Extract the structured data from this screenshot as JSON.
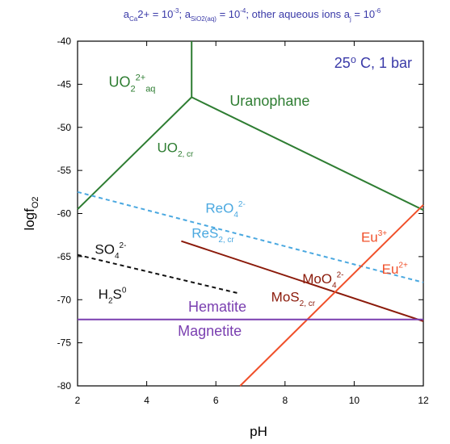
{
  "header": {
    "parts": [
      {
        "t": "a",
        "c": "#3a3aa8"
      },
      {
        "t": "Ca",
        "c": "#3a3aa8",
        "sub": true
      },
      {
        "t": "2+",
        "c": "#3a3aa8"
      },
      {
        "t": " = 10",
        "c": "#3a3aa8"
      },
      {
        "t": "-3",
        "c": "#3a3aa8",
        "sup": true
      },
      {
        "t": "; a",
        "c": "#3a3aa8"
      },
      {
        "t": "SiO2(aq)",
        "c": "#3a3aa8",
        "sub": true
      },
      {
        "t": " = 10",
        "c": "#3a3aa8"
      },
      {
        "t": "-4",
        "c": "#3a3aa8",
        "sup": true
      },
      {
        "t": "; other aqueous ions a",
        "c": "#3a3aa8"
      },
      {
        "t": "j",
        "c": "#3a3aa8",
        "sub": true
      },
      {
        "t": " = 10",
        "c": "#3a3aa8"
      },
      {
        "t": "-6",
        "c": "#3a3aa8",
        "sup": true
      }
    ]
  },
  "conditions": "25⁰ C, 1 bar",
  "axes": {
    "xlabel": "pH",
    "ylabel": "logf",
    "ylabel_sub": "O2",
    "xlim": [
      2,
      12
    ],
    "ylim": [
      -80,
      -40
    ],
    "xticks": [
      2,
      4,
      6,
      8,
      10,
      12
    ],
    "yticks": [
      -40,
      -45,
      -50,
      -55,
      -60,
      -65,
      -70,
      -75,
      -80
    ]
  },
  "colors": {
    "uranium": "#2e7d32",
    "rhenium": "#4aa8e0",
    "sulfur": "#111111",
    "molybdenum": "#8b1a0a",
    "europium": "#f0502a",
    "iron": "#7a3fb0",
    "conditions": "#3a3aa8"
  },
  "boundaries": [
    {
      "id": "uo2aq-uo2cr",
      "color": "uranium",
      "style": "solid",
      "pts": [
        [
          2.0,
          -59.5
        ],
        [
          5.3,
          -46.5
        ]
      ]
    },
    {
      "id": "uo2aq-uranophane",
      "color": "uranium",
      "style": "solid",
      "pts": [
        [
          5.3,
          -40.0
        ],
        [
          5.3,
          -46.5
        ]
      ]
    },
    {
      "id": "uo2cr-uranophane",
      "color": "uranium",
      "style": "solid",
      "pts": [
        [
          5.3,
          -46.5
        ],
        [
          12.0,
          -59.6
        ]
      ]
    },
    {
      "id": "reo4-res2",
      "color": "rhenium",
      "style": "dashed",
      "pts": [
        [
          2.0,
          -57.5
        ],
        [
          12.0,
          -68.0
        ]
      ]
    },
    {
      "id": "so4-h2s",
      "color": "sulfur",
      "style": "dashed",
      "pts": [
        [
          2.0,
          -64.8
        ],
        [
          6.7,
          -69.3
        ]
      ]
    },
    {
      "id": "moo4-mos2",
      "color": "molybdenum",
      "style": "solid",
      "pts": [
        [
          5.0,
          -63.2
        ],
        [
          12.0,
          -72.5
        ]
      ]
    },
    {
      "id": "eu3-eu2",
      "color": "europium",
      "style": "solid",
      "pts": [
        [
          6.7,
          -80.0
        ],
        [
          12.0,
          -59.0
        ]
      ]
    },
    {
      "id": "hematite-magnetite",
      "color": "iron",
      "style": "solid",
      "pts": [
        [
          2.0,
          -72.3
        ],
        [
          12.0,
          -72.3
        ]
      ]
    }
  ],
  "labels": [
    {
      "id": "uo2aq",
      "color": "uranium",
      "x": 2.9,
      "y": -45.3,
      "size": 18,
      "parts": [
        {
          "t": "UO"
        },
        {
          "t": "2",
          "sub": true
        },
        {
          "t": "2+",
          "sup": true
        },
        {
          "t": "aq",
          "sub": true
        }
      ]
    },
    {
      "id": "uranophane",
      "color": "uranium",
      "x": 6.4,
      "y": -47.5,
      "size": 18,
      "parts": [
        {
          "t": "Uranophane"
        }
      ]
    },
    {
      "id": "uo2cr",
      "color": "uranium",
      "x": 4.3,
      "y": -52.9,
      "size": 17,
      "parts": [
        {
          "t": "UO"
        },
        {
          "t": "2, cr",
          "sub": true
        }
      ]
    },
    {
      "id": "reo4",
      "color": "rhenium",
      "x": 5.7,
      "y": -59.9,
      "size": 17,
      "parts": [
        {
          "t": "ReO"
        },
        {
          "t": "4",
          "sub": true
        },
        {
          "t": "2-",
          "sup": true
        }
      ]
    },
    {
      "id": "res2",
      "color": "rhenium",
      "x": 5.3,
      "y": -62.8,
      "size": 17,
      "parts": [
        {
          "t": "ReS"
        },
        {
          "t": "2, cr",
          "sub": true
        }
      ]
    },
    {
      "id": "so4",
      "color": "sulfur",
      "x": 2.5,
      "y": -64.7,
      "size": 17,
      "parts": [
        {
          "t": "SO"
        },
        {
          "t": "4",
          "sub": true
        },
        {
          "t": "2-",
          "sup": true
        }
      ]
    },
    {
      "id": "h2s",
      "color": "sulfur",
      "x": 2.6,
      "y": -69.9,
      "size": 17,
      "parts": [
        {
          "t": "H"
        },
        {
          "t": "2",
          "sub": true
        },
        {
          "t": "S"
        },
        {
          "t": "0",
          "sup": true
        }
      ]
    },
    {
      "id": "eu3",
      "color": "europium",
      "x": 10.2,
      "y": -63.3,
      "size": 17,
      "parts": [
        {
          "t": "Eu"
        },
        {
          "t": "3+",
          "sup": true
        }
      ]
    },
    {
      "id": "eu2",
      "color": "europium",
      "x": 10.8,
      "y": -67.0,
      "size": 17,
      "parts": [
        {
          "t": "Eu"
        },
        {
          "t": "2+",
          "sup": true
        }
      ]
    },
    {
      "id": "moo4",
      "color": "molybdenum",
      "x": 8.5,
      "y": -68.1,
      "size": 17,
      "parts": [
        {
          "t": "MoO"
        },
        {
          "t": "4",
          "sub": true
        },
        {
          "t": "2-",
          "sup": true
        }
      ]
    },
    {
      "id": "mos2",
      "color": "molybdenum",
      "x": 7.6,
      "y": -70.2,
      "size": 17,
      "parts": [
        {
          "t": "MoS"
        },
        {
          "t": "2, cr",
          "sub": true
        }
      ]
    },
    {
      "id": "hematite",
      "color": "iron",
      "x": 5.2,
      "y": -71.4,
      "size": 18,
      "parts": [
        {
          "t": "Hematite"
        }
      ]
    },
    {
      "id": "magnetite",
      "color": "iron",
      "x": 4.9,
      "y": -74.2,
      "size": 18,
      "parts": [
        {
          "t": "Magnetite"
        }
      ]
    }
  ]
}
